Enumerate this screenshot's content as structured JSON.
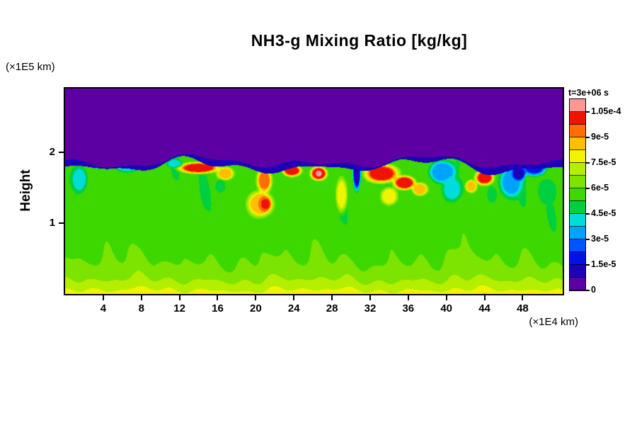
{
  "title": "NH3-g Mixing Ratio [kg/kg]",
  "y_axis_unit": "(×1E5 km)",
  "x_axis_unit": "(×1E4 km)",
  "y_axis_label": "Height",
  "chart_data": {
    "type": "heatmap",
    "title": "NH3-g Mixing Ratio [kg/kg]",
    "value_units": "kg/kg",
    "time_annotation": "t=3e+06 s",
    "xlabel": "(×1E4 km)",
    "ylabel": "Height (×1E5 km)",
    "xlim": [
      0,
      52.2
    ],
    "ylim": [
      0,
      2.9
    ],
    "x_ticks": [
      4,
      8,
      12,
      16,
      20,
      24,
      28,
      32,
      36,
      40,
      44,
      48
    ],
    "y_ticks": [
      1,
      2
    ],
    "grid": false,
    "background_color": "#ffffff",
    "frame_color": "#000000",
    "colorbar": {
      "title": "t=3e+06 s",
      "position": "right",
      "level_min": 0,
      "level_step": 7.5e-06,
      "tick_labels": [
        "0",
        "1.5e-5",
        "3e-5",
        "4.5e-5",
        "6e-5",
        "7.5e-5",
        "9e-5",
        "1.05e-4"
      ],
      "colors": [
        "#5c00a3",
        "#1e00b9",
        "#0013e6",
        "#0055ff",
        "#00a2ff",
        "#00dcdc",
        "#00d040",
        "#3cd800",
        "#7ce400",
        "#b4ee00",
        "#f0f400",
        "#ffbe00",
        "#ff6e00",
        "#f01400",
        "#ff9696"
      ]
    },
    "field_model": {
      "description": "Procedural approximation of the plotted field: value 0 (purple) above a wavy interface near height 1.86e5 km, a thin dark-blue entrainment rim at the interface, a green mixed layer (~5.5e-5 kg/kg) whose value increases toward a yellow surface layer (~7.9e-5 kg/kg), with turbulent high-value (orange/red, ~0.9-1.1e-4) and low-value (cyan/dark-blue, ~1e-5-4.5e-5) eddies concentrated along the interface between heights 1.2 and 1.9.",
      "interface": {
        "mean": 1.86,
        "waves": [
          [
            0.5,
            1.2,
            0.05
          ],
          [
            0.27,
            4.0,
            0.045
          ],
          [
            1.1,
            0.5,
            0.028
          ]
        ]
      },
      "rim": {
        "value": 1.1e-05,
        "base": 0.06,
        "waves": [
          [
            0.85,
            1.0,
            0.5
          ],
          [
            0.23,
            3.0,
            0.35
          ]
        ]
      },
      "mixed_layer": {
        "base": 5.5e-05,
        "surface_amp": 2.4e-05,
        "decay": 0.3
      },
      "noise": {
        "amp": 4.5e-06,
        "terms": [
          [
            0.9,
            3.1,
            0.0
          ],
          [
            1.7,
            -2.3,
            2.0
          ],
          [
            0.35,
            1.15,
            5.0
          ],
          [
            2.3,
            5.0,
            1.0
          ]
        ]
      },
      "blobs": [
        {
          "x": 14.0,
          "h": 1.78,
          "rx": 2.4,
          "rh": 0.09,
          "v": 0.0001
        },
        {
          "x": 16.8,
          "h": 1.7,
          "rx": 1.0,
          "rh": 0.1,
          "v": 8.8e-05
        },
        {
          "x": 20.9,
          "h": 1.6,
          "rx": 0.9,
          "rh": 0.2,
          "v": 9e-05
        },
        {
          "x": 20.5,
          "h": 1.27,
          "rx": 1.5,
          "rh": 0.2,
          "v": 8.9e-05
        },
        {
          "x": 21.0,
          "h": 1.27,
          "rx": 0.7,
          "rh": 0.11,
          "v": 9.9e-05
        },
        {
          "x": 23.8,
          "h": 1.74,
          "rx": 1.1,
          "rh": 0.09,
          "v": 0.000101
        },
        {
          "x": 26.6,
          "h": 1.7,
          "rx": 1.0,
          "rh": 0.11,
          "v": 0.000102
        },
        {
          "x": 26.6,
          "h": 1.7,
          "rx": 0.4,
          "rh": 0.05,
          "v": 0.000108
        },
        {
          "x": 29.0,
          "h": 1.4,
          "rx": 0.7,
          "rh": 0.28,
          "v": 7.7e-05
        },
        {
          "x": 33.2,
          "h": 1.7,
          "rx": 2.0,
          "rh": 0.15,
          "v": 9.9e-05
        },
        {
          "x": 35.6,
          "h": 1.57,
          "rx": 1.3,
          "rh": 0.11,
          "v": 0.000102
        },
        {
          "x": 37.2,
          "h": 1.48,
          "rx": 0.9,
          "rh": 0.1,
          "v": 8.9e-05
        },
        {
          "x": 34.0,
          "h": 1.38,
          "rx": 1.0,
          "rh": 0.14,
          "v": 8.1e-05
        },
        {
          "x": 44.0,
          "h": 1.64,
          "rx": 1.1,
          "rh": 0.12,
          "v": 0.0001
        },
        {
          "x": 42.6,
          "h": 1.52,
          "rx": 0.7,
          "rh": 0.1,
          "v": 8.6e-05
        },
        {
          "x": 39.6,
          "h": 1.72,
          "rx": 1.6,
          "rh": 0.18,
          "v": 3.3e-05
        },
        {
          "x": 40.6,
          "h": 1.48,
          "rx": 1.2,
          "rh": 0.2,
          "v": 4.2e-05
        },
        {
          "x": 46.8,
          "h": 1.58,
          "rx": 1.4,
          "rh": 0.26,
          "v": 3.6e-05
        },
        {
          "x": 49.2,
          "h": 1.78,
          "rx": 1.4,
          "rh": 0.12,
          "v": 2.2e-05
        },
        {
          "x": 50.6,
          "h": 1.45,
          "rx": 1.0,
          "rh": 0.18,
          "v": 4.5e-05
        },
        {
          "x": 6.5,
          "h": 1.8,
          "rx": 1.4,
          "rh": 0.09,
          "v": 4.2e-05
        },
        {
          "x": 1.5,
          "h": 1.62,
          "rx": 1.0,
          "rh": 0.22,
          "v": 4.3e-05
        },
        {
          "x": 11.5,
          "h": 1.84,
          "rx": 0.9,
          "rh": 0.06,
          "v": 4e-05
        },
        {
          "x": 16.3,
          "h": 1.52,
          "rx": 0.6,
          "rh": 0.1,
          "v": 4.6e-05
        },
        {
          "x": 44.8,
          "h": 1.4,
          "rx": 0.6,
          "rh": 0.13,
          "v": 5e-05
        },
        {
          "x": 30.6,
          "h": 1.72,
          "rx": 0.45,
          "rh": 0.28,
          "v": 1.2e-05
        },
        {
          "x": 3.5,
          "h": 1.86,
          "rx": 1.2,
          "rh": 0.09,
          "v": 1.2e-05
        },
        {
          "x": 47.6,
          "h": 1.7,
          "rx": 0.8,
          "rh": 0.11,
          "v": 1.3e-05
        }
      ]
    }
  }
}
